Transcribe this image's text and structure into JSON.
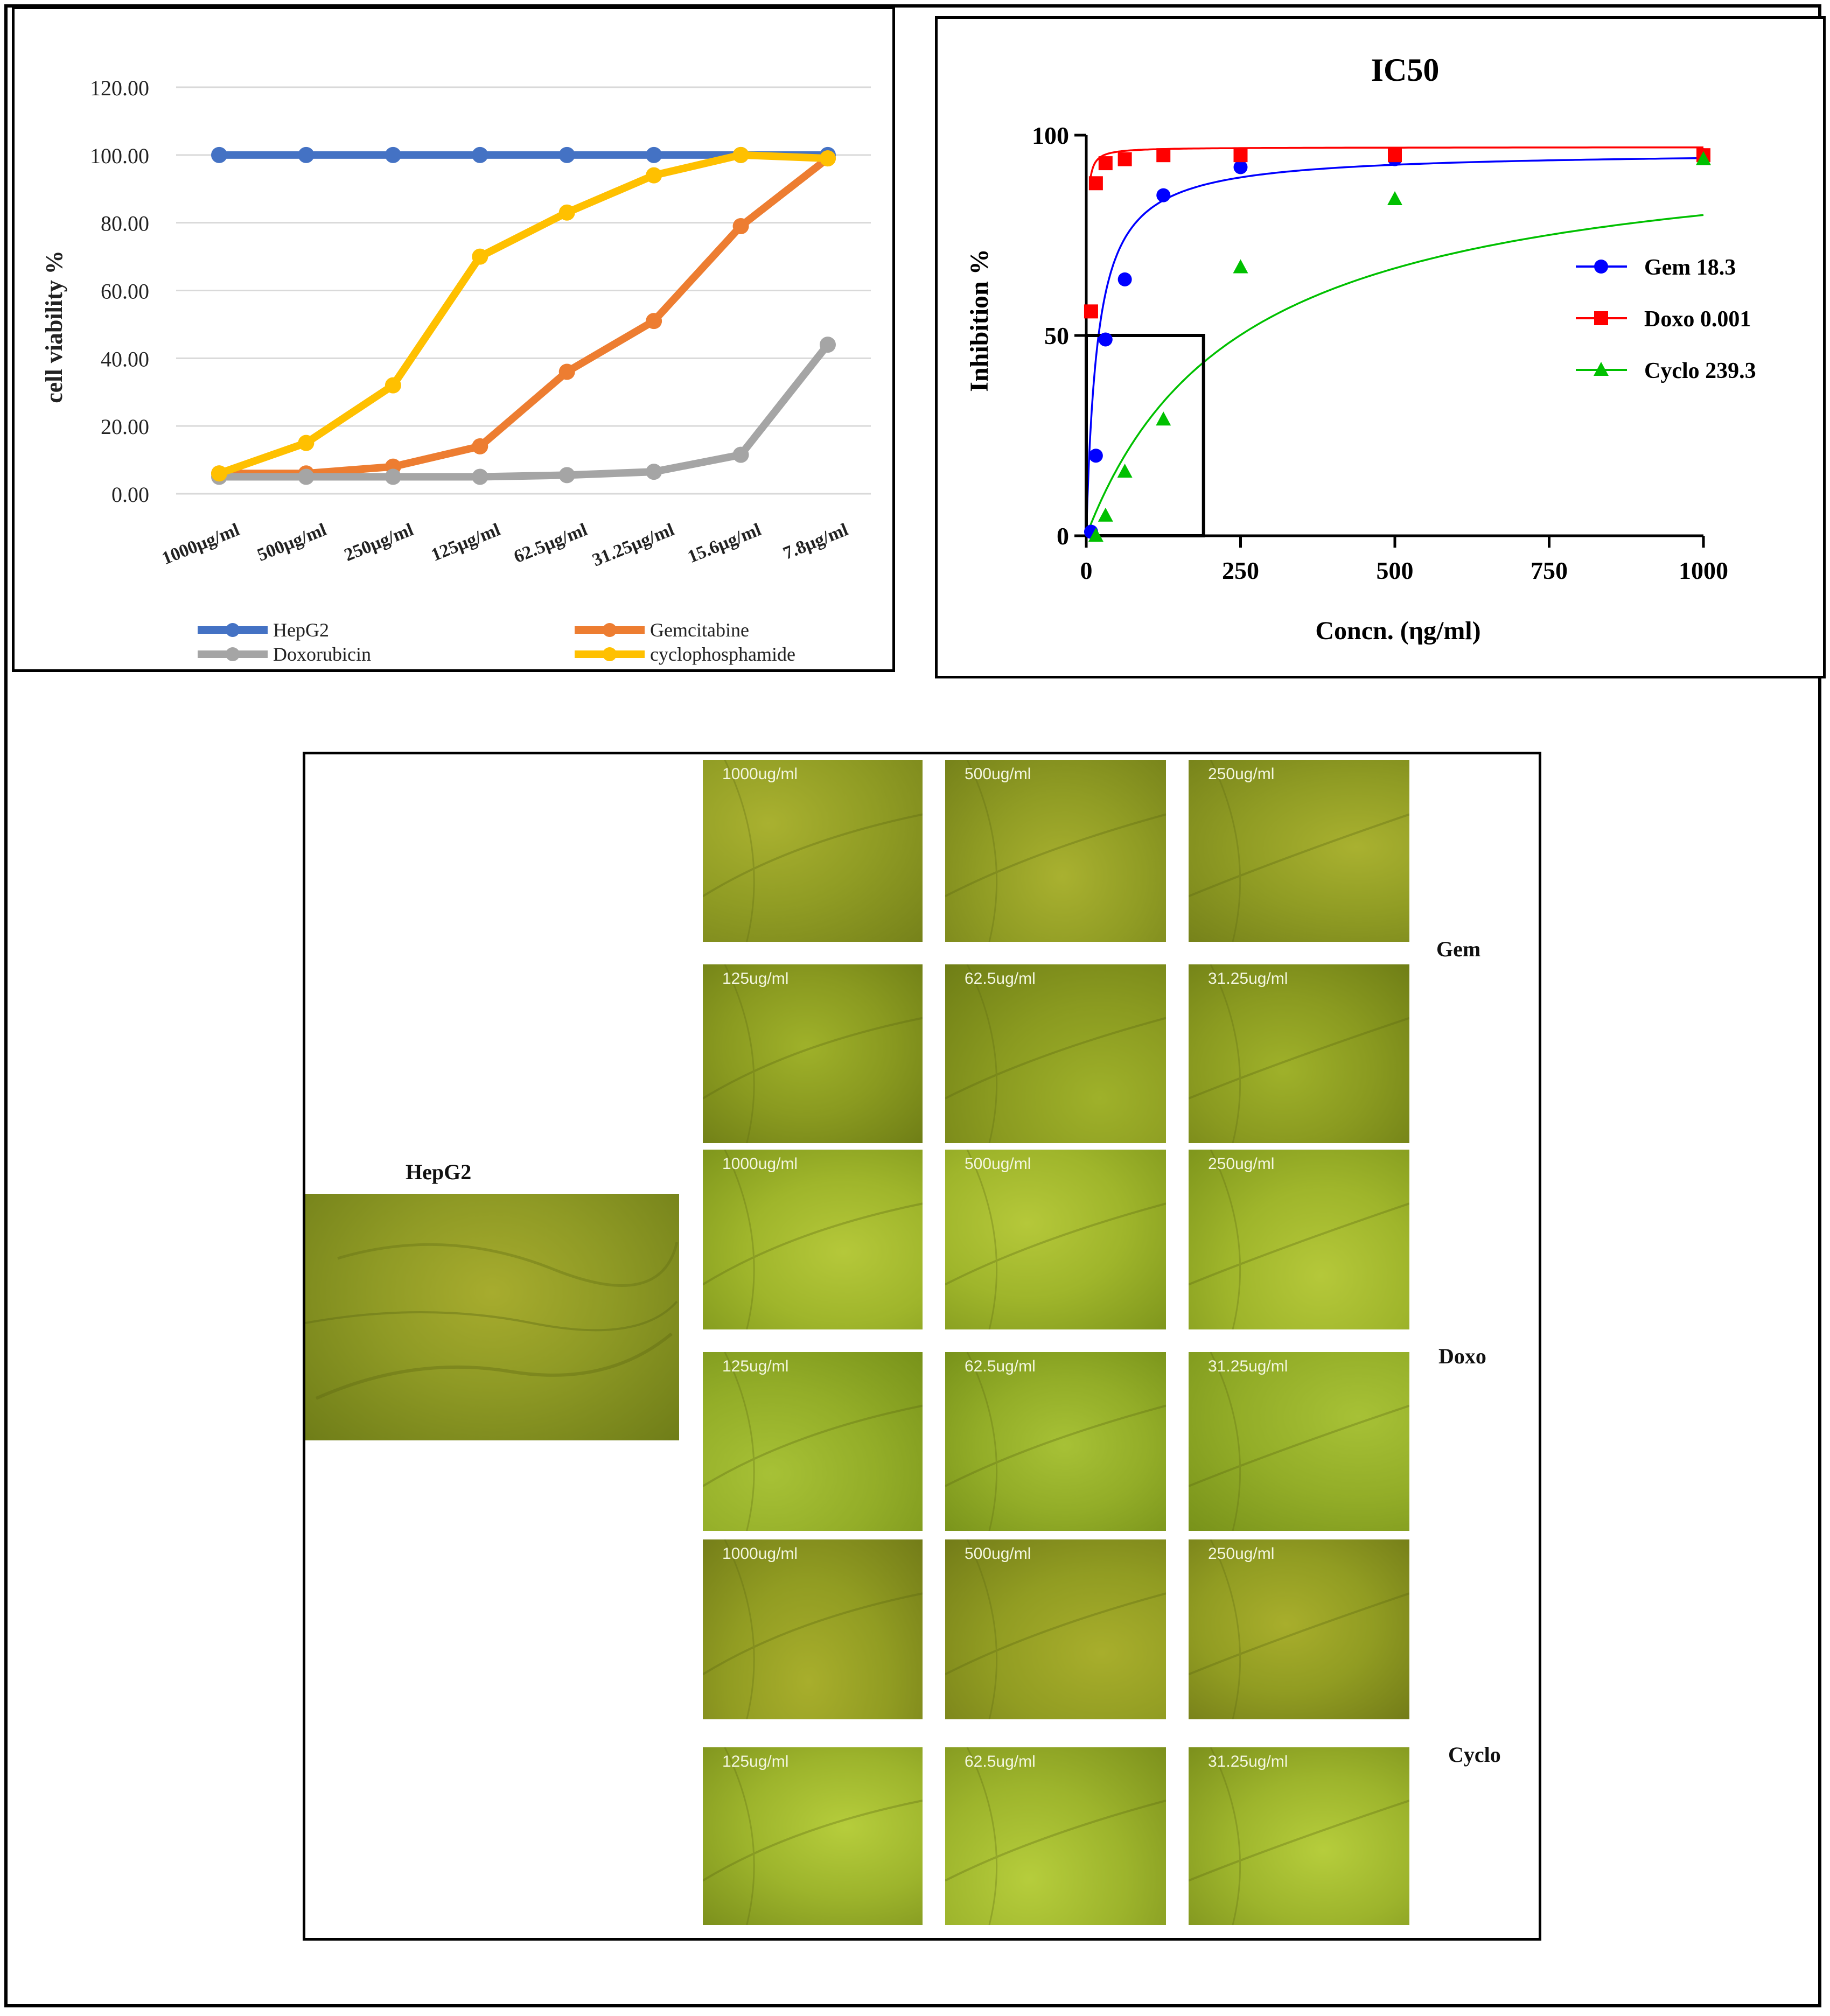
{
  "chart_data": [
    {
      "type": "line",
      "title": "",
      "xlabel": "",
      "ylabel": "cell viability %",
      "ylim": [
        0,
        120
      ],
      "yticks": [
        "0.00",
        "20.00",
        "40.00",
        "60.00",
        "80.00",
        "100.00",
        "120.00"
      ],
      "categories": [
        "1000µg/ml",
        "500µg/ml",
        "250µg/ml",
        "125µg/ml",
        "62.5µg/ml",
        "31.25µg/ml",
        "15.6µg/ml",
        "7.8µg/ml"
      ],
      "legend_position": "bottom",
      "series": [
        {
          "name": "HepG2",
          "color": "#4472c4",
          "values": [
            100,
            100,
            100,
            100,
            100,
            100,
            100,
            100
          ]
        },
        {
          "name": "Gemcitabine",
          "color": "#ed7d31",
          "values": [
            6,
            6,
            8,
            14,
            36,
            51,
            79,
            99
          ]
        },
        {
          "name": "Doxorubicin",
          "color": "#a5a5a5",
          "values": [
            5,
            5,
            5,
            5,
            5.5,
            6.5,
            11.5,
            44
          ]
        },
        {
          "name": "cyclophosphamide",
          "color": "#ffc000",
          "values": [
            6,
            15,
            32,
            70,
            83,
            94,
            100,
            99
          ]
        }
      ]
    },
    {
      "type": "scatter",
      "title": "IC50",
      "xlabel": "Concn. (ηg/ml)",
      "ylabel": "Inhibition %",
      "xlim": [
        0,
        1000
      ],
      "ylim": [
        0,
        100
      ],
      "xticks": [
        "0",
        "250",
        "500",
        "750",
        "1000"
      ],
      "yticks": [
        "0",
        "50",
        "100"
      ],
      "legend_position": "right",
      "ic50_box": {
        "x": 190,
        "y": 50
      },
      "series": [
        {
          "name": "Gem 18.3",
          "color": "#0000ff",
          "marker": "circle",
          "ic50": 18.3,
          "x": [
            7.8,
            15.6,
            31.25,
            62.5,
            125,
            250,
            500,
            1000
          ],
          "y": [
            1,
            20,
            49,
            64,
            85,
            92,
            94,
            95
          ]
        },
        {
          "name": "Doxo 0.001",
          "color": "#ff0000",
          "marker": "square",
          "ic50": 0.001,
          "x": [
            7.8,
            15.6,
            31.25,
            62.5,
            125,
            250,
            500,
            1000
          ],
          "y": [
            56,
            88,
            93,
            94,
            95,
            95,
            95,
            95
          ]
        },
        {
          "name": "Cyclo 239.3",
          "color": "#00c000",
          "marker": "triangle",
          "ic50": 239.3,
          "x": [
            15.6,
            31.25,
            62.5,
            125,
            250,
            500,
            1000
          ],
          "y": [
            0,
            5,
            16,
            29,
            67,
            84,
            94
          ]
        }
      ]
    }
  ],
  "micro": {
    "hepg2_label": "HepG2",
    "row_labels": {
      "gem": "Gem",
      "doxo": "Doxo",
      "cyclo": "Cyclo"
    },
    "labels": [
      [
        "1000ug/ml",
        "500ug/ml",
        "250ug/ml"
      ],
      [
        "125ug/ml",
        "62.5ug/ml",
        "31.25ug/ml"
      ],
      [
        "1000ug/ml",
        "500ug/ml",
        "250ug/ml"
      ],
      [
        "125ug/ml",
        "62.5ug/ml",
        "31.25ug/ml"
      ],
      [
        "1000ug/ml",
        "500ug/ml",
        "250ug/ml"
      ],
      [
        "125ug/ml",
        "62.5ug/ml",
        "31.25ug/ml"
      ]
    ]
  }
}
